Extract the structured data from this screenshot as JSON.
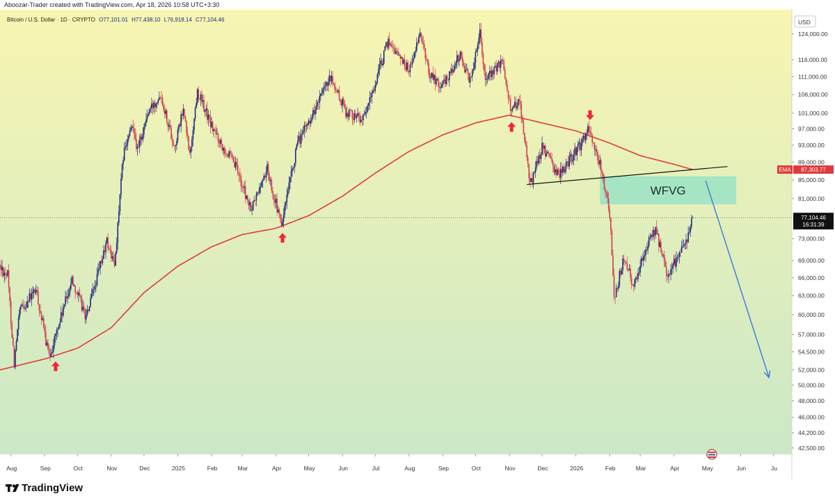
{
  "header": {
    "credit": "Aboozar-Trader created with TradingView.com, Apr 18, 2026 10:58 UTC+3:30"
  },
  "info_line": {
    "symbol": "Bitcoin / U.S. Dollar · 1D · CRYPTO",
    "open": "O77,101.01",
    "high": "H77,438.10",
    "low": "L76,918.14",
    "close": "C77,104.46"
  },
  "currency": "USD",
  "ema_tag": {
    "label": "EMA",
    "value": "87,303.77"
  },
  "last_price_tag": {
    "value": "77,104.46",
    "countdown": "16:31:39"
  },
  "zone_label": "WFVG",
  "footer": {
    "brand": "TradingView"
  },
  "colors": {
    "bg_top": "#f8f5b2",
    "bg_bottom": "#cbe8c7",
    "ema": "#e13a3a",
    "zone": "#9de3c4",
    "arrow": "#3a78d8",
    "marker": "#f0263a",
    "up_candle": "#1d2a7a",
    "down_candle": "#d13b4c"
  },
  "chart_data": {
    "type": "candlestick",
    "symbol": "BTCUSD",
    "interval": "1D",
    "y_scale": "log",
    "ylim": [
      41800,
      132000
    ],
    "y_ticks": [
      {
        "value": 124000,
        "label": "124,000.00"
      },
      {
        "value": 116000,
        "label": "116,000.00"
      },
      {
        "value": 111000,
        "label": "111,000.00"
      },
      {
        "value": 106000,
        "label": "106,000.00"
      },
      {
        "value": 101000,
        "label": "101,000.00"
      },
      {
        "value": 97000,
        "label": "97,000.00"
      },
      {
        "value": 93000,
        "label": "93,000.00"
      },
      {
        "value": 89000,
        "label": "89,000.00"
      },
      {
        "value": 85000,
        "label": "85,000.00"
      },
      {
        "value": 81000,
        "label": "81,000.00"
      },
      {
        "value": 73000,
        "label": "73,000.00"
      },
      {
        "value": 69000,
        "label": "69,000.00"
      },
      {
        "value": 66000,
        "label": "66,000.00"
      },
      {
        "value": 63000,
        "label": "63,000.00"
      },
      {
        "value": 60000,
        "label": "60,000.00"
      },
      {
        "value": 57000,
        "label": "57,000.00"
      },
      {
        "value": 54500,
        "label": "54,500.00"
      },
      {
        "value": 52000,
        "label": "52,000.00"
      },
      {
        "value": 50000,
        "label": "50,000.00"
      },
      {
        "value": 48000,
        "label": "48,000.00"
      },
      {
        "value": 46000,
        "label": "46,000.00"
      },
      {
        "value": 44200,
        "label": "44,200.00"
      },
      {
        "value": 42500,
        "label": "42,500.00"
      }
    ],
    "x_ticks": [
      {
        "date": "2024-08-01",
        "label": "Aug"
      },
      {
        "date": "2024-09-01",
        "label": "Sep"
      },
      {
        "date": "2024-10-01",
        "label": "Oct"
      },
      {
        "date": "2024-11-01",
        "label": "Nov"
      },
      {
        "date": "2024-12-01",
        "label": "Dec"
      },
      {
        "date": "2025-01-01",
        "label": "2025"
      },
      {
        "date": "2025-02-01",
        "label": "Feb"
      },
      {
        "date": "2025-03-01",
        "label": "Mar"
      },
      {
        "date": "2025-04-01",
        "label": "Apr"
      },
      {
        "date": "2025-05-01",
        "label": "May"
      },
      {
        "date": "2025-06-01",
        "label": "Jun"
      },
      {
        "date": "2025-07-01",
        "label": "Jul"
      },
      {
        "date": "2025-08-01",
        "label": "Aug"
      },
      {
        "date": "2025-09-01",
        "label": "Sep"
      },
      {
        "date": "2025-10-01",
        "label": "Oct"
      },
      {
        "date": "2025-11-01",
        "label": "Nov"
      },
      {
        "date": "2025-12-01",
        "label": "Dec"
      },
      {
        "date": "2026-01-01",
        "label": "2026"
      },
      {
        "date": "2026-02-01",
        "label": "Feb"
      },
      {
        "date": "2026-03-01",
        "label": "Mar"
      },
      {
        "date": "2026-04-01",
        "label": "Apr"
      },
      {
        "date": "2026-05-01",
        "label": "May"
      },
      {
        "date": "2026-06-01",
        "label": "Jun"
      },
      {
        "date": "2026-07-01",
        "label": "Ju"
      }
    ],
    "xlim": [
      "2024-07-22",
      "2026-07-18"
    ],
    "price_path": [
      [
        "2024-07-22",
        68000
      ],
      [
        "2024-07-30",
        66500
      ],
      [
        "2024-08-05",
        53000
      ],
      [
        "2024-08-10",
        60500
      ],
      [
        "2024-08-25",
        64000
      ],
      [
        "2024-09-06",
        53700
      ],
      [
        "2024-09-15",
        58500
      ],
      [
        "2024-09-27",
        65800
      ],
      [
        "2024-10-10",
        59500
      ],
      [
        "2024-10-29",
        72500
      ],
      [
        "2024-11-05",
        68000
      ],
      [
        "2024-11-13",
        90500
      ],
      [
        "2024-11-22",
        98500
      ],
      [
        "2024-11-26",
        91500
      ],
      [
        "2024-12-05",
        100500
      ],
      [
        "2024-12-17",
        106500
      ],
      [
        "2024-12-30",
        92500
      ],
      [
        "2025-01-07",
        102000
      ],
      [
        "2025-01-13",
        90500
      ],
      [
        "2025-01-20",
        107000
      ],
      [
        "2025-02-03",
        97000
      ],
      [
        "2025-02-25",
        87500
      ],
      [
        "2025-03-10",
        78500
      ],
      [
        "2025-03-25",
        87500
      ],
      [
        "2025-04-07",
        75500
      ],
      [
        "2025-04-22",
        93500
      ],
      [
        "2025-05-22",
        110500
      ],
      [
        "2025-06-05",
        101500
      ],
      [
        "2025-06-22",
        99500
      ],
      [
        "2025-07-14",
        122000
      ],
      [
        "2025-08-02",
        113000
      ],
      [
        "2025-08-13",
        124000
      ],
      [
        "2025-08-20",
        112500
      ],
      [
        "2025-09-01",
        108000
      ],
      [
        "2025-09-18",
        117500
      ],
      [
        "2025-09-27",
        109500
      ],
      [
        "2025-10-06",
        125500
      ],
      [
        "2025-10-11",
        110000
      ],
      [
        "2025-10-27",
        115500
      ],
      [
        "2025-11-04",
        101000
      ],
      [
        "2025-11-11",
        105500
      ],
      [
        "2025-11-21",
        84000
      ],
      [
        "2025-12-02",
        92500
      ],
      [
        "2025-12-17",
        86000
      ],
      [
        "2026-01-05",
        92500
      ],
      [
        "2026-01-14",
        97000
      ],
      [
        "2026-01-25",
        87500
      ],
      [
        "2026-02-02",
        78000
      ],
      [
        "2026-02-06",
        62500
      ],
      [
        "2026-02-15",
        69500
      ],
      [
        "2026-02-24",
        64500
      ],
      [
        "2026-03-05",
        70500
      ],
      [
        "2026-03-16",
        74500
      ],
      [
        "2026-03-27",
        66500
      ],
      [
        "2026-04-05",
        69500
      ],
      [
        "2026-04-12",
        71500
      ],
      [
        "2026-04-18",
        77104
      ]
    ],
    "ema_path": [
      [
        "2024-07-22",
        52000
      ],
      [
        "2024-09-01",
        53500
      ],
      [
        "2024-10-01",
        55000
      ],
      [
        "2024-11-01",
        58000
      ],
      [
        "2024-12-01",
        63500
      ],
      [
        "2025-01-01",
        68000
      ],
      [
        "2025-02-01",
        71500
      ],
      [
        "2025-03-01",
        73800
      ],
      [
        "2025-04-01",
        75000
      ],
      [
        "2025-05-01",
        77500
      ],
      [
        "2025-06-01",
        81500
      ],
      [
        "2025-07-01",
        86500
      ],
      [
        "2025-08-01",
        91500
      ],
      [
        "2025-09-01",
        95500
      ],
      [
        "2025-10-01",
        98500
      ],
      [
        "2025-11-01",
        100500
      ],
      [
        "2025-12-01",
        98500
      ],
      [
        "2026-01-01",
        96500
      ],
      [
        "2026-02-01",
        93500
      ],
      [
        "2026-03-01",
        90500
      ],
      [
        "2026-04-01",
        88500
      ],
      [
        "2026-04-18",
        87303.77
      ]
    ],
    "ema_last": 87303.77,
    "last_price": 77104.46,
    "last_high": 77438.1,
    "last_low": 76918.14,
    "last_open": 77101.01,
    "trendline": {
      "start": [
        "2025-11-17",
        84000
      ],
      "end": [
        "2026-05-20",
        88000
      ]
    },
    "zone": {
      "label": "WFVG",
      "start": "2026-01-23",
      "end": "2026-05-28",
      "top": 85800,
      "bottom": 79800
    },
    "projection_arrow": {
      "start": [
        "2026-04-30",
        84800
      ],
      "end": [
        "2026-06-27",
        51000
      ]
    },
    "markers": [
      {
        "direction": "up",
        "date": "2024-09-11",
        "price": 52500
      },
      {
        "direction": "up",
        "date": "2025-04-07",
        "price": 73200
      },
      {
        "direction": "up",
        "date": "2025-11-03",
        "price": 97500
      },
      {
        "direction": "down",
        "date": "2026-01-14",
        "price": 100500
      }
    ]
  }
}
